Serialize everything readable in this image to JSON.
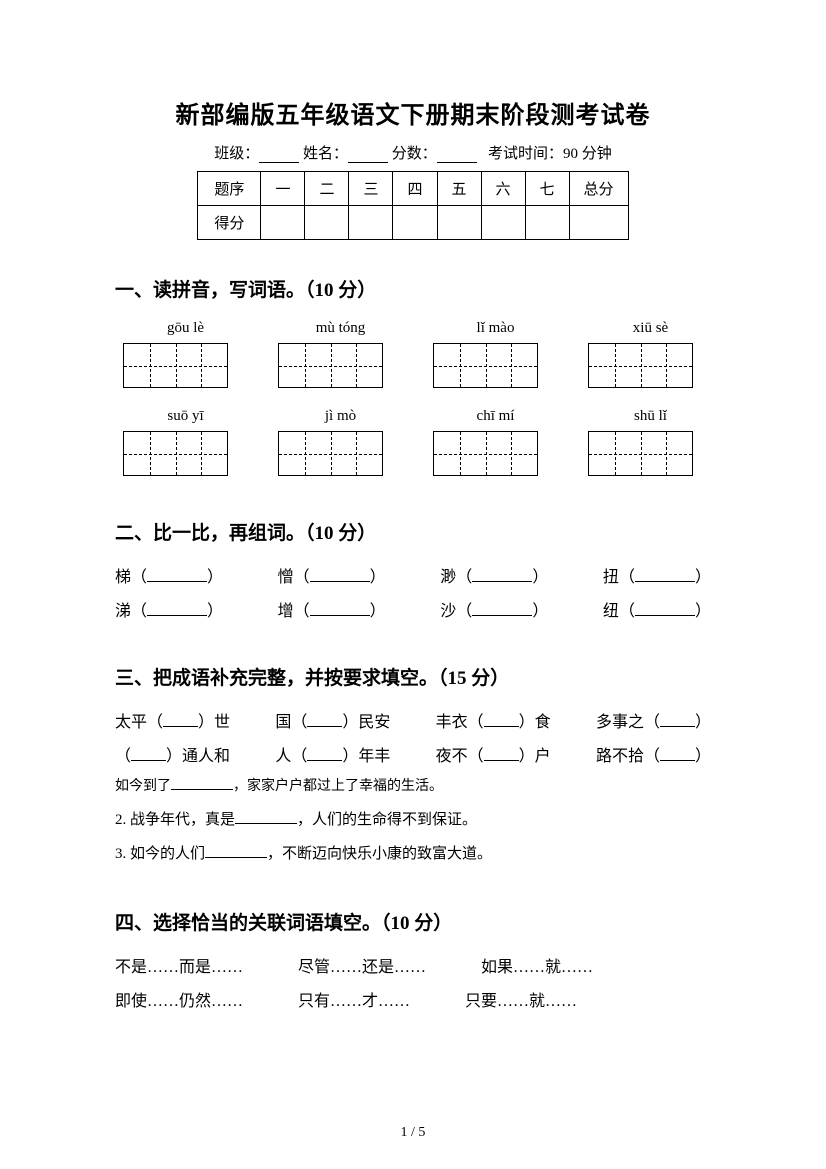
{
  "title": "新部编版五年级语文下册期末阶段测考试卷",
  "info": {
    "class_label": "班级：",
    "name_label": "姓名：",
    "score_label": "分数：",
    "time_label": "考试时间：90 分钟"
  },
  "score_table": {
    "row1": [
      "题序",
      "一",
      "二",
      "三",
      "四",
      "五",
      "六",
      "七",
      "总分"
    ],
    "row2_label": "得分"
  },
  "section1": {
    "heading": "一、读拼音，写词语。（10 分）",
    "pinyin_row1": [
      "gōu lè",
      "mù tóng",
      "lǐ mào",
      "xiū sè"
    ],
    "pinyin_row2": [
      "suō yī",
      "jì mò",
      "chī mí",
      "shū lǐ"
    ]
  },
  "section2": {
    "heading": "二、比一比，再组词。（10 分）",
    "row1_chars": [
      "梯",
      "憎",
      "渺",
      "扭"
    ],
    "row2_chars": [
      "涕",
      "增",
      "沙",
      "纽"
    ]
  },
  "section3": {
    "heading": "三、把成语补充完整，并按要求填空。（15 分）",
    "line1": [
      {
        "pre": "太平（",
        "post": "）世"
      },
      {
        "pre": "国（",
        "post": "）民安"
      },
      {
        "pre": "丰衣（",
        "post": "）食"
      },
      {
        "pre": "多事之（",
        "post": "）"
      }
    ],
    "line2": [
      {
        "pre": "（",
        "post": "）通人和"
      },
      {
        "pre": "人（",
        "post": "）年丰"
      },
      {
        "pre": "夜不（",
        "post": "）户"
      },
      {
        "pre": "路不拾（",
        "post": "）"
      }
    ],
    "sentence1_a": "如今到了",
    "sentence1_b": "，家家户户都过上了幸福的生活。",
    "sentence2_a": "2. 战争年代，真是",
    "sentence2_b": "，人们的生命得不到保证。",
    "sentence3_a": "3. 如今的人们",
    "sentence3_b": "，不断迈向快乐小康的致富大道。"
  },
  "section4": {
    "heading": "四、选择恰当的关联词语填空。（10 分）",
    "row1": [
      "不是……而是……",
      "尽管……还是……",
      "如果……就……"
    ],
    "row2": [
      "即使……仍然……",
      "只有……才……",
      "只要……就……"
    ]
  },
  "page_num": "1 / 5"
}
